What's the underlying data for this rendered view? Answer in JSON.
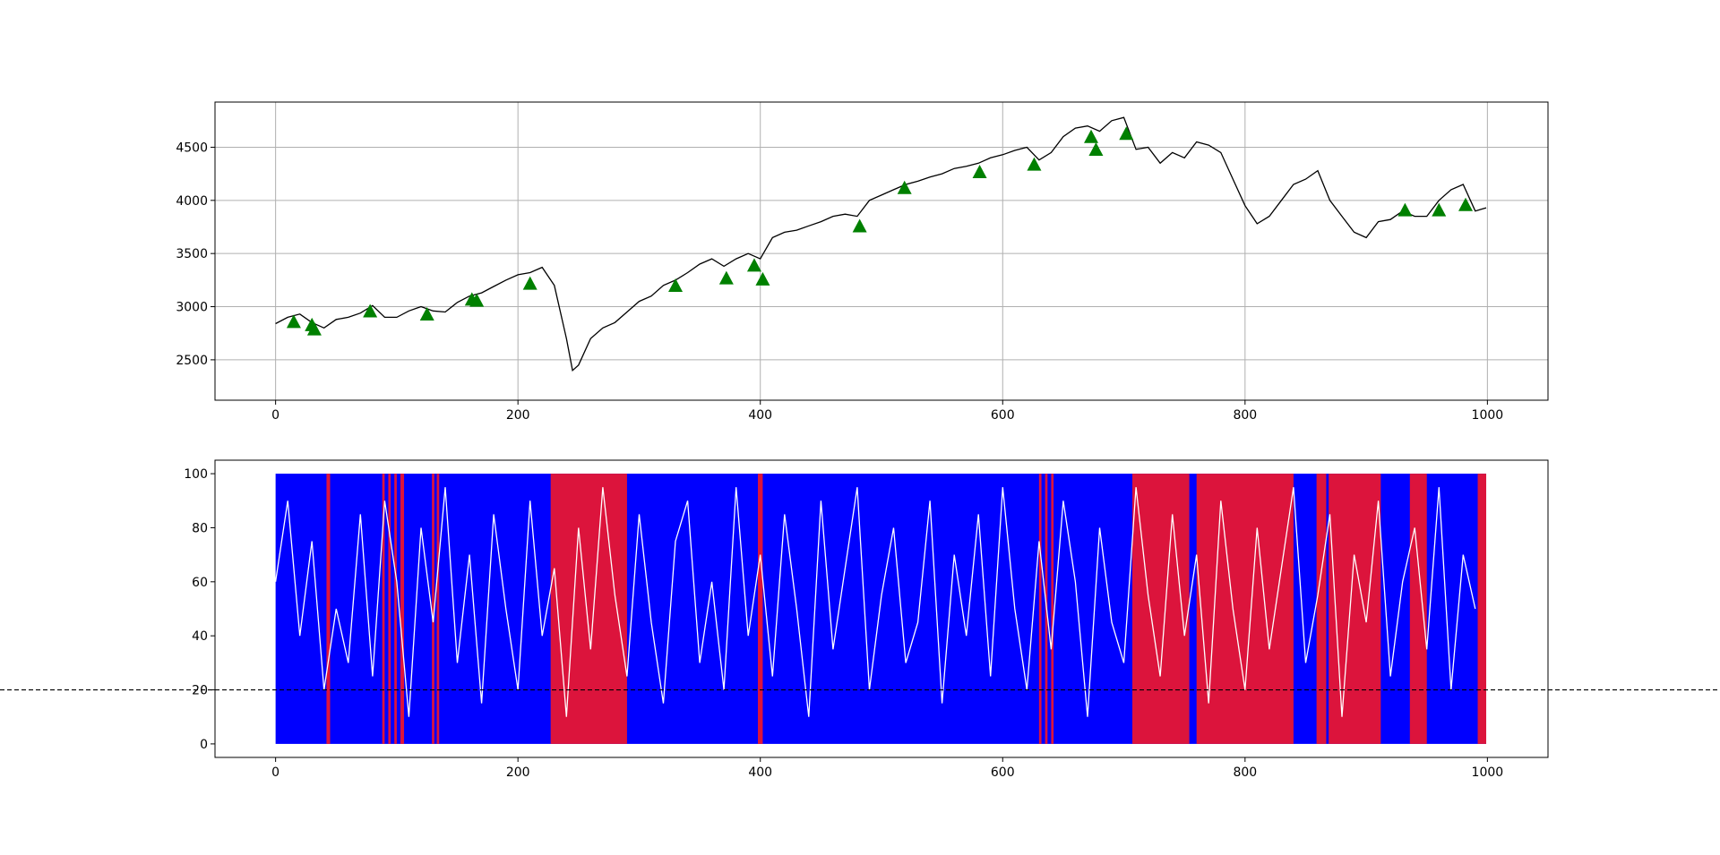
{
  "chart_data": [
    {
      "type": "line",
      "xlim": [
        -50,
        1050
      ],
      "ylim": [
        2120,
        4925
      ],
      "xticks": [
        0,
        200,
        400,
        600,
        800,
        1000
      ],
      "yticks": [
        2500,
        3000,
        3500,
        4000,
        4500
      ],
      "grid": true,
      "series": [
        {
          "color": "#000000",
          "x": [
            0,
            10,
            20,
            30,
            40,
            50,
            60,
            70,
            80,
            90,
            100,
            110,
            120,
            130,
            140,
            150,
            160,
            170,
            180,
            190,
            200,
            210,
            220,
            230,
            240,
            245,
            250,
            260,
            270,
            280,
            290,
            300,
            310,
            320,
            330,
            340,
            350,
            360,
            370,
            380,
            390,
            400,
            410,
            420,
            430,
            440,
            450,
            460,
            470,
            480,
            490,
            500,
            510,
            520,
            530,
            540,
            550,
            560,
            570,
            580,
            590,
            600,
            610,
            620,
            630,
            640,
            650,
            660,
            670,
            680,
            690,
            700,
            710,
            720,
            730,
            740,
            750,
            760,
            770,
            780,
            790,
            800,
            810,
            820,
            830,
            840,
            850,
            860,
            870,
            880,
            890,
            900,
            910,
            920,
            930,
            940,
            950,
            960,
            970,
            980,
            990,
            999
          ],
          "values": [
            2840,
            2900,
            2930,
            2850,
            2800,
            2880,
            2900,
            2940,
            3010,
            2900,
            2900,
            2960,
            3000,
            2960,
            2950,
            3040,
            3100,
            3130,
            3190,
            3250,
            3300,
            3320,
            3370,
            3200,
            2700,
            2400,
            2450,
            2700,
            2800,
            2850,
            2950,
            3050,
            3100,
            3200,
            3250,
            3320,
            3400,
            3450,
            3380,
            3450,
            3500,
            3450,
            3650,
            3700,
            3720,
            3760,
            3800,
            3850,
            3870,
            3850,
            4000,
            4050,
            4100,
            4150,
            4180,
            4220,
            4250,
            4300,
            4320,
            4350,
            4400,
            4430,
            4470,
            4500,
            4380,
            4450,
            4600,
            4680,
            4700,
            4650,
            4750,
            4780,
            4480,
            4500,
            4350,
            4450,
            4400,
            4550,
            4520,
            4450,
            4200,
            3950,
            3780,
            3850,
            4000,
            4150,
            4200,
            4280,
            4000,
            3850,
            3700,
            3650,
            3800,
            3820,
            3900,
            3850,
            3850,
            4000,
            4100,
            4150,
            3900,
            3930
          ]
        }
      ],
      "markers": {
        "color": "#008000",
        "x": [
          15,
          30,
          32,
          78,
          125,
          162,
          166,
          210,
          330,
          372,
          395,
          402,
          482,
          519,
          581,
          626,
          673,
          677,
          702,
          932,
          960,
          982
        ],
        "y": [
          2850,
          2820,
          2780,
          2950,
          2920,
          3060,
          3050,
          3210,
          3190,
          3260,
          3380,
          3250,
          3750,
          4110,
          4260,
          4330,
          4590,
          4470,
          4620,
          3900,
          3900,
          3950
        ]
      }
    },
    {
      "type": "line",
      "xlim": [
        -50,
        1050
      ],
      "ylim": [
        -5,
        105
      ],
      "xticks": [
        0,
        200,
        400,
        600,
        800,
        1000
      ],
      "yticks": [
        0,
        20,
        40,
        60,
        80,
        100
      ],
      "grid": false,
      "regimes": [
        {
          "color": "#0000ff",
          "low": 0,
          "high": 100,
          "spans": [
            [
              0,
              999
            ]
          ]
        },
        {
          "color": "#dc143c",
          "low": 0,
          "high": 100,
          "spans": [
            [
              42,
              45
            ],
            [
              88,
              90
            ],
            [
              93,
              95
            ],
            [
              98,
              100
            ],
            [
              103,
              106
            ],
            [
              129,
              131
            ],
            [
              133,
              135
            ],
            [
              227,
              290
            ],
            [
              398,
              402
            ],
            [
              630,
              632
            ],
            [
              635,
              637
            ],
            [
              640,
              642
            ],
            [
              707,
              754
            ],
            [
              760,
              840
            ],
            [
              859,
              867
            ],
            [
              869,
              912
            ],
            [
              936,
              950
            ],
            [
              992,
              999
            ]
          ]
        }
      ],
      "hline": {
        "value": 20,
        "color": "#000000"
      },
      "series": [
        {
          "color": "#ffffff",
          "x": [
            0,
            10,
            20,
            30,
            40,
            50,
            60,
            70,
            80,
            90,
            100,
            110,
            120,
            130,
            140,
            150,
            160,
            170,
            180,
            190,
            200,
            210,
            220,
            230,
            240,
            250,
            260,
            270,
            280,
            290,
            300,
            310,
            320,
            330,
            340,
            350,
            360,
            370,
            380,
            390,
            400,
            410,
            420,
            430,
            440,
            450,
            460,
            470,
            480,
            490,
            500,
            510,
            520,
            530,
            540,
            550,
            560,
            570,
            580,
            590,
            600,
            610,
            620,
            630,
            640,
            650,
            660,
            670,
            680,
            690,
            700,
            710,
            720,
            730,
            740,
            750,
            760,
            770,
            780,
            790,
            800,
            810,
            820,
            830,
            840,
            850,
            860,
            870,
            880,
            890,
            900,
            910,
            920,
            930,
            940,
            950,
            960,
            970,
            980,
            990
          ],
          "values": [
            60,
            90,
            40,
            75,
            20,
            50,
            30,
            85,
            25,
            90,
            60,
            10,
            80,
            45,
            95,
            30,
            70,
            15,
            85,
            50,
            20,
            90,
            40,
            65,
            10,
            80,
            35,
            95,
            55,
            25,
            85,
            45,
            15,
            75,
            90,
            30,
            60,
            20,
            95,
            40,
            70,
            25,
            85,
            50,
            10,
            90,
            35,
            65,
            95,
            20,
            55,
            80,
            30,
            45,
            90,
            15,
            70,
            40,
            85,
            25,
            95,
            50,
            20,
            75,
            35,
            90,
            60,
            10,
            80,
            45,
            30,
            95,
            55,
            25,
            85,
            40,
            70,
            15,
            90,
            50,
            20,
            80,
            35,
            65,
            95,
            30,
            55,
            85,
            10,
            70,
            45,
            90,
            25,
            60,
            80,
            35,
            95,
            20,
            70,
            50
          ]
        }
      ]
    }
  ]
}
